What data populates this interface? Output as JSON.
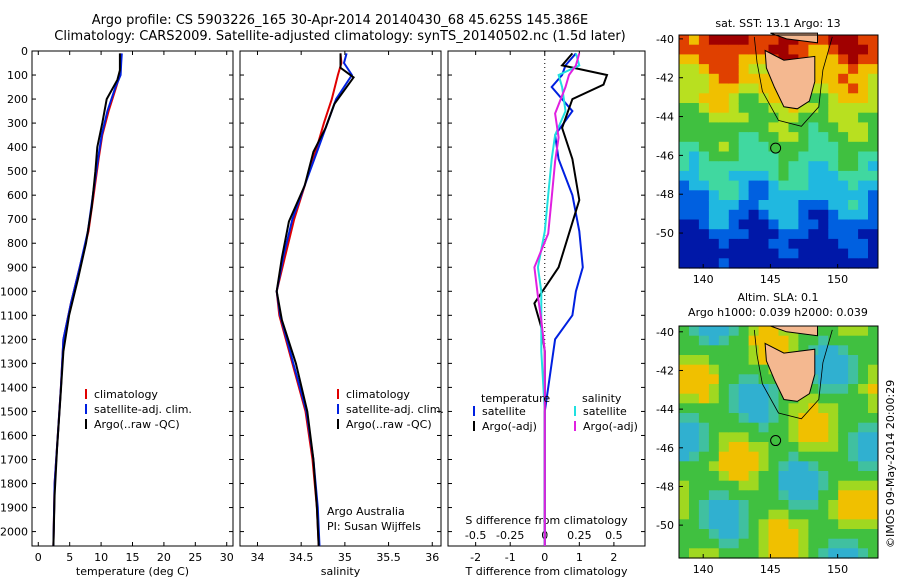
{
  "header": {
    "line1": "Argo profile: CS 5903226_165 30-Apr-2014 20140430_68 45.625S 145.386E",
    "line2": "Climatology: CARS2009. Satellite-adjusted climatology: synTS_20140502.nc (1.5d later)"
  },
  "colors": {
    "climatology": "#e00000",
    "satellite": "#0020e0",
    "argo": "#000000",
    "satellite_s": "#20e0e0",
    "argo_s": "#e020e0"
  },
  "depth_axis": {
    "ticks": [
      0,
      100,
      200,
      300,
      400,
      500,
      600,
      700,
      800,
      900,
      1000,
      1100,
      1200,
      1300,
      1400,
      1500,
      1600,
      1700,
      1800,
      1900,
      2000
    ]
  },
  "chart_data": [
    {
      "type": "line",
      "panel": "temperature",
      "xlabel": "temperature (deg C)",
      "ylim": [
        0,
        2060
      ],
      "xlim": [
        -1,
        31
      ],
      "xticks": [
        0,
        5,
        10,
        15,
        20,
        25,
        30
      ],
      "legend": [
        "climatology",
        "satellite-adj. clim.",
        "Argo(..raw -QC)"
      ],
      "series": [
        {
          "name": "climatology",
          "key": "climatology",
          "x": [
            13.2,
            13.1,
            13.0,
            12.4,
            11.2,
            10.2,
            9.6,
            8.8,
            8.0,
            6.6,
            5.2,
            4.0,
            3.6,
            3.1,
            2.6,
            2.4
          ],
          "y": [
            10,
            50,
            100,
            150,
            250,
            350,
            450,
            600,
            750,
            900,
            1050,
            1200,
            1400,
            1600,
            1800,
            2060
          ]
        },
        {
          "name": "satellite-adj. clim.",
          "key": "satellite",
          "x": [
            13.3,
            13.2,
            13.1,
            12.3,
            11.0,
            10.1,
            9.5,
            8.7,
            7.9,
            6.6,
            5.2,
            4.0,
            3.6,
            3.1,
            2.6,
            2.4
          ],
          "y": [
            10,
            50,
            100,
            150,
            250,
            350,
            450,
            600,
            750,
            900,
            1050,
            1200,
            1400,
            1600,
            1800,
            2060
          ]
        },
        {
          "name": "Argo(..raw -QC)",
          "key": "argo",
          "x": [
            13.0,
            13.0,
            12.6,
            10.9,
            10.2,
            9.4,
            9.1,
            8.5,
            7.6,
            6.3,
            4.9,
            4.0,
            3.5,
            3.0,
            2.6,
            2.4
          ],
          "y": [
            10,
            80,
            120,
            200,
            300,
            400,
            500,
            650,
            800,
            950,
            1100,
            1250,
            1450,
            1650,
            1850,
            2060
          ]
        }
      ]
    },
    {
      "type": "line",
      "panel": "salinity",
      "xlabel": "salinity",
      "ylim": [
        0,
        2060
      ],
      "xlim": [
        33.8,
        36.1
      ],
      "xticks": [
        34,
        34.5,
        35,
        35.5,
        36
      ],
      "legend": [
        "climatology",
        "satellite-adj. clim.",
        "Argo(..raw -QC)"
      ],
      "credit": [
        "Argo Australia",
        "PI: Susan Wijffels"
      ],
      "series": [
        {
          "name": "climatology",
          "key": "climatology",
          "x": [
            34.95,
            34.96,
            34.92,
            34.85,
            34.76,
            34.68,
            34.55,
            34.42,
            34.32,
            34.22,
            34.25,
            34.4,
            34.55,
            34.63,
            34.68,
            34.7
          ],
          "y": [
            10,
            50,
            100,
            200,
            300,
            400,
            550,
            700,
            850,
            1000,
            1100,
            1300,
            1500,
            1700,
            1900,
            2060
          ]
        },
        {
          "name": "satellite-adj. clim.",
          "key": "satellite",
          "x": [
            35.02,
            34.99,
            35.08,
            34.9,
            34.8,
            34.7,
            34.55,
            34.4,
            34.3,
            34.22,
            34.26,
            34.41,
            34.56,
            34.64,
            34.69,
            34.71
          ],
          "y": [
            10,
            50,
            100,
            200,
            300,
            400,
            550,
            700,
            850,
            1000,
            1100,
            1300,
            1500,
            1700,
            1900,
            2060
          ]
        },
        {
          "name": "Argo(..raw -QC)",
          "key": "argo",
          "x": [
            34.95,
            34.95,
            35.1,
            34.88,
            34.78,
            34.64,
            34.54,
            34.36,
            34.28,
            34.22,
            34.28,
            34.44,
            34.57,
            34.64,
            34.68,
            34.7
          ],
          "y": [
            10,
            70,
            110,
            220,
            320,
            420,
            560,
            710,
            860,
            1000,
            1120,
            1300,
            1500,
            1700,
            1900,
            2060
          ]
        }
      ]
    },
    {
      "type": "line",
      "panel": "difference",
      "xlabel": "T difference from climatology",
      "top_xlabel": "S difference from climatology",
      "ylim": [
        0,
        2060
      ],
      "xlim": [
        -2.8,
        2.9
      ],
      "xticks": [
        -2,
        -1,
        0,
        1,
        2
      ],
      "top_xticks": [
        "-0.5",
        "-0.25",
        "0",
        "0.25",
        "0.5"
      ],
      "legend_titles": [
        "temperature",
        "salinity"
      ],
      "legend": [
        "satellite",
        "Argo(-adj)",
        "satellite",
        "Argo(-adj)"
      ],
      "series": [
        {
          "name": "satellite",
          "key": "satellite",
          "x": [
            0.9,
            0.6,
            0.5,
            0.2,
            0.8,
            0.3,
            0.4,
            0.8,
            1.0,
            1.1,
            0.9,
            0.8,
            0.3,
            0.0,
            0.0,
            0.0
          ],
          "y": [
            10,
            60,
            100,
            150,
            250,
            350,
            450,
            600,
            750,
            900,
            1000,
            1100,
            1200,
            1500,
            1800,
            2060
          ]
        },
        {
          "name": "Argo(-adj)",
          "key": "argo",
          "x": [
            0.8,
            0.5,
            1.8,
            1.7,
            0.8,
            0.5,
            0.8,
            1.0,
            0.7,
            0.4,
            -0.3,
            -0.1,
            0.0,
            0.0,
            0.0,
            0.0
          ],
          "y": [
            10,
            60,
            100,
            140,
            200,
            320,
            450,
            620,
            760,
            900,
            1050,
            1150,
            1250,
            1500,
            1800,
            2060
          ]
        },
        {
          "name": "satellite",
          "key": "satellite_s",
          "x": [
            0.9,
            1.0,
            0.4,
            0.5,
            0.6,
            0.3,
            0.2,
            0.1,
            0.0,
            -0.2,
            -0.1,
            -0.1,
            -0.1,
            0.0,
            0.0,
            0.0
          ],
          "y": [
            10,
            60,
            100,
            150,
            250,
            350,
            450,
            600,
            750,
            900,
            1000,
            1100,
            1250,
            1500,
            1800,
            2060
          ]
        },
        {
          "name": "Argo(-adj)",
          "key": "argo_s",
          "x": [
            1.0,
            0.9,
            0.7,
            0.6,
            0.3,
            0.4,
            0.3,
            0.2,
            0.1,
            -0.3,
            -0.2,
            -0.1,
            0.0,
            0.0,
            0.0,
            0.0
          ],
          "y": [
            10,
            60,
            100,
            150,
            260,
            360,
            460,
            610,
            760,
            900,
            1020,
            1120,
            1250,
            1500,
            1800,
            2060
          ]
        }
      ]
    }
  ],
  "maps": [
    {
      "title": "sat. SST: 13.1 Argo: 13",
      "yticks": [
        -40,
        -42,
        -44,
        -46,
        -48,
        -50
      ],
      "xticks": [
        140,
        145,
        150
      ]
    },
    {
      "title1": "Altim. SLA: 0.1",
      "title2": "Argo h1000: 0.039 h2000: 0.039",
      "yticks": [
        -40,
        -42,
        -44,
        -46,
        -48,
        -50
      ],
      "xticks": [
        140,
        145,
        150
      ]
    }
  ],
  "float_position": {
    "lon": 145.386,
    "lat": -45.625
  },
  "imos_stamp": "©IMOS 09-May-2014 20:00:29"
}
